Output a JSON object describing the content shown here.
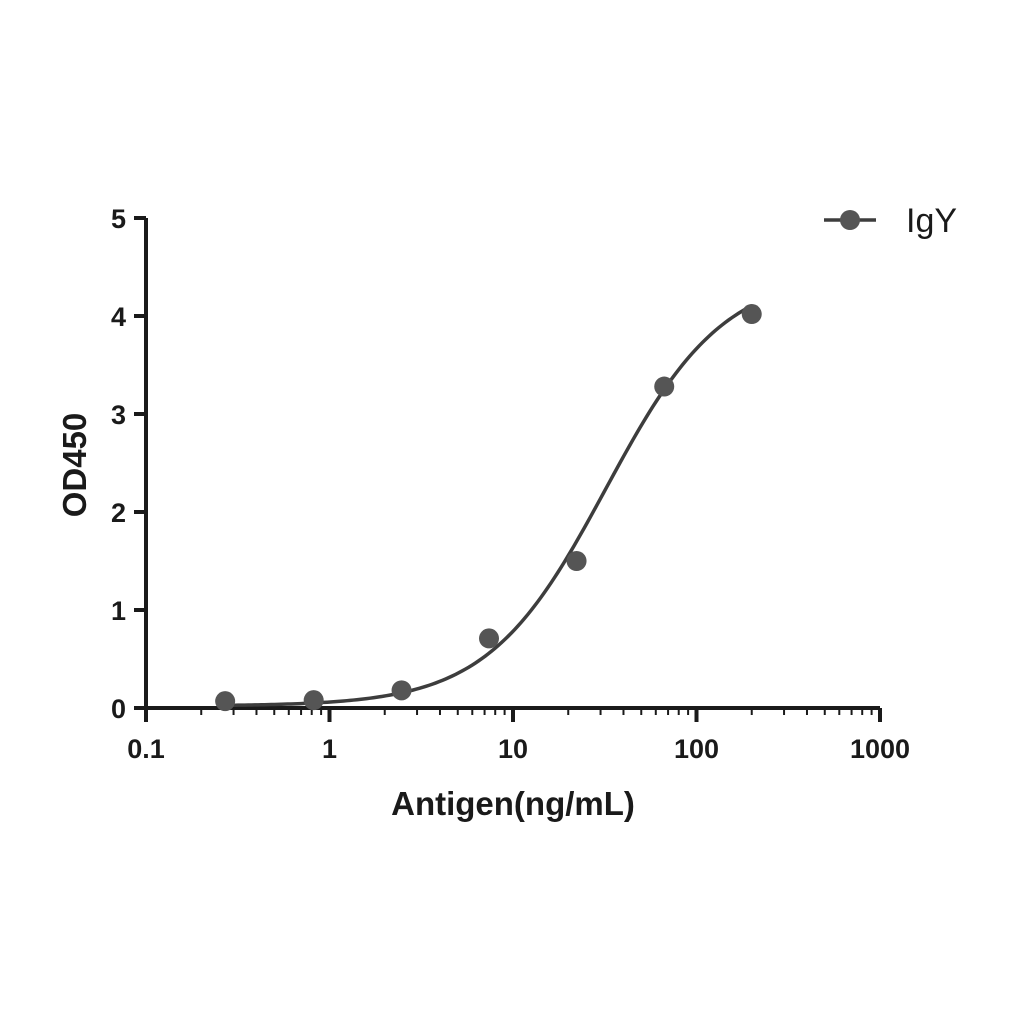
{
  "chart_data": {
    "type": "scatter",
    "xlabel": "Antigen(ng/mL)",
    "ylabel": "OD450",
    "xscale": "log",
    "xlim": [
      0.1,
      1000
    ],
    "ylim": [
      0,
      5
    ],
    "xticks": [
      "0.1",
      "1",
      "10",
      "100",
      "1000"
    ],
    "yticks": [
      "0",
      "1",
      "2",
      "3",
      "4",
      "5"
    ],
    "grid": false,
    "legend_position": "top-right",
    "series": [
      {
        "name": "IgY",
        "color": "#555555",
        "marker": "circle",
        "x": [
          0.27,
          0.82,
          2.47,
          7.4,
          22.2,
          66.7,
          200
        ],
        "y": [
          0.07,
          0.08,
          0.18,
          0.71,
          1.5,
          3.28,
          4.02
        ],
        "fit": {
          "model": "4PL",
          "bottom": 0.02,
          "top": 4.45,
          "ec50": 32,
          "hill": 1.35
        }
      }
    ]
  }
}
